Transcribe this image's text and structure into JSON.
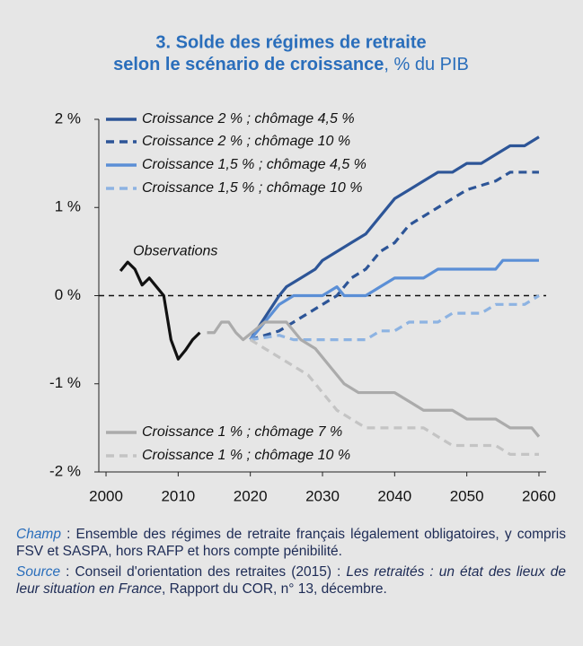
{
  "chart_data": {
    "type": "line",
    "title_line1": "3. Solde des régimes de retraite",
    "title_line2": "selon le scénario de croissance",
    "title_unit": ", % du PIB",
    "xlim": [
      1999,
      2061
    ],
    "xticks": [
      2000,
      2010,
      2020,
      2030,
      2040,
      2050,
      2060
    ],
    "ylim": [
      -2,
      2
    ],
    "yticks": [
      {
        "value": 2,
        "label": "2 %"
      },
      {
        "value": 1,
        "label": "1 %"
      },
      {
        "value": 0,
        "label": "0 %"
      },
      {
        "value": -1,
        "label": "-1 %"
      },
      {
        "value": -2,
        "label": "-2 %"
      }
    ],
    "zero_line": true,
    "series": [
      {
        "name": "Observations",
        "color": "#111111",
        "dash": false,
        "label_on_line": true,
        "x": [
          2002,
          2003,
          2004,
          2005,
          2006,
          2007,
          2008,
          2009,
          2010,
          2011,
          2012,
          2013
        ],
        "values": [
          0.28,
          0.38,
          0.3,
          0.12,
          0.2,
          0.1,
          0.0,
          -0.5,
          -0.72,
          -0.62,
          -0.5,
          -0.42
        ]
      },
      {
        "name": "Croissance 2 % ; chômage 4,5 %",
        "color": "#2d5597",
        "dash": false,
        "x": [
          2020,
          2022,
          2024,
          2025,
          2027,
          2029,
          2030,
          2032,
          2034,
          2036,
          2038,
          2040,
          2042,
          2044,
          2046,
          2048,
          2050,
          2052,
          2054,
          2056,
          2058,
          2060
        ],
        "values": [
          -0.5,
          -0.25,
          0.0,
          0.1,
          0.2,
          0.3,
          0.4,
          0.5,
          0.6,
          0.7,
          0.9,
          1.1,
          1.2,
          1.3,
          1.4,
          1.4,
          1.5,
          1.5,
          1.6,
          1.7,
          1.7,
          1.8
        ]
      },
      {
        "name": "Croissance 2 % ; chômage 10 %",
        "color": "#2d5597",
        "dash": true,
        "x": [
          2020,
          2024,
          2026,
          2028,
          2030,
          2032,
          2034,
          2036,
          2038,
          2040,
          2042,
          2044,
          2046,
          2048,
          2050,
          2054,
          2056,
          2060
        ],
        "values": [
          -0.5,
          -0.4,
          -0.3,
          -0.2,
          -0.1,
          0.0,
          0.2,
          0.3,
          0.5,
          0.6,
          0.8,
          0.9,
          1.0,
          1.1,
          1.2,
          1.3,
          1.4,
          1.4
        ]
      },
      {
        "name": "Croissance 1,5 % ; chômage 4,5 %",
        "color": "#5b8fd6",
        "dash": false,
        "x": [
          2020,
          2022,
          2024,
          2026,
          2030,
          2032,
          2033,
          2036,
          2038,
          2040,
          2044,
          2046,
          2054,
          2055,
          2060
        ],
        "values": [
          -0.5,
          -0.3,
          -0.1,
          0.0,
          0.0,
          0.1,
          0.0,
          0.0,
          0.1,
          0.2,
          0.2,
          0.3,
          0.3,
          0.4,
          0.4
        ]
      },
      {
        "name": "Croissance 1,5 % ; chômage 10 %",
        "color": "#8db3e2",
        "dash": true,
        "x": [
          2020,
          2024,
          2026,
          2036,
          2038,
          2040,
          2042,
          2046,
          2048,
          2052,
          2054,
          2058,
          2060
        ],
        "values": [
          -0.5,
          -0.45,
          -0.5,
          -0.5,
          -0.4,
          -0.4,
          -0.3,
          -0.3,
          -0.2,
          -0.2,
          -0.1,
          -0.1,
          0.0
        ]
      },
      {
        "name": "Croissance 1 % ; chômage 7 %",
        "color": "#ababab",
        "dash": false,
        "x": [
          2014,
          2015,
          2016,
          2017,
          2018,
          2019,
          2022,
          2025,
          2027,
          2029,
          2031,
          2033,
          2035,
          2040,
          2042,
          2044,
          2048,
          2050,
          2054,
          2056,
          2059,
          2060
        ],
        "values": [
          -0.42,
          -0.42,
          -0.3,
          -0.3,
          -0.42,
          -0.5,
          -0.3,
          -0.3,
          -0.5,
          -0.6,
          -0.8,
          -1.0,
          -1.1,
          -1.1,
          -1.2,
          -1.3,
          -1.3,
          -1.4,
          -1.4,
          -1.5,
          -1.5,
          -1.6
        ]
      },
      {
        "name": "Croissance 1 % ; chômage 10 %",
        "color": "#c4c4c4",
        "dash": true,
        "x": [
          2020,
          2022,
          2024,
          2026,
          2028,
          2030,
          2032,
          2034,
          2036,
          2044,
          2046,
          2048,
          2054,
          2056,
          2060
        ],
        "values": [
          -0.5,
          -0.6,
          -0.7,
          -0.8,
          -0.9,
          -1.1,
          -1.3,
          -1.4,
          -1.5,
          -1.5,
          -1.6,
          -1.7,
          -1.7,
          -1.8,
          -1.8
        ]
      }
    ]
  },
  "notes": {
    "champ_label": "Champ",
    "champ_text": " : Ensemble des régimes de retraite français légalement obligatoires, y compris FSV et SASPA, hors RAFP et hors compte pénibilité.",
    "source_label": "Source",
    "source_text1": " : Conseil d'orientation des retraites (2015) : ",
    "source_title": "Les retraités : un état des lieux de leur situation en France",
    "source_text2": ", Rapport du COR, n° 13, décembre."
  }
}
